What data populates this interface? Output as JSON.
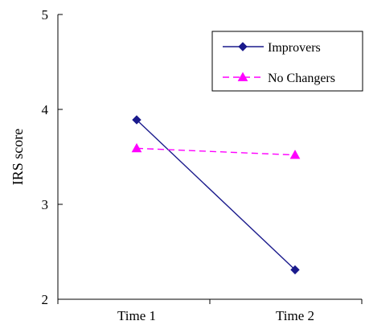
{
  "chart_data": {
    "type": "line",
    "title": "",
    "xlabel": "",
    "ylabel": "IRS score",
    "categories": [
      "Time 1",
      "Time 2"
    ],
    "ylim": [
      2,
      5
    ],
    "yticks": [
      "2",
      "3",
      "4",
      "5"
    ],
    "grid": false,
    "legend_position": "top-right",
    "series": [
      {
        "name": "Improvers",
        "values": [
          3.89,
          2.31
        ],
        "color": "#1a1a8c",
        "marker": "diamond",
        "line_style": "solid"
      },
      {
        "name": "No Changers",
        "values": [
          3.59,
          3.52
        ],
        "color": "#ff00ff",
        "marker": "triangle",
        "line_style": "dashed"
      }
    ]
  }
}
